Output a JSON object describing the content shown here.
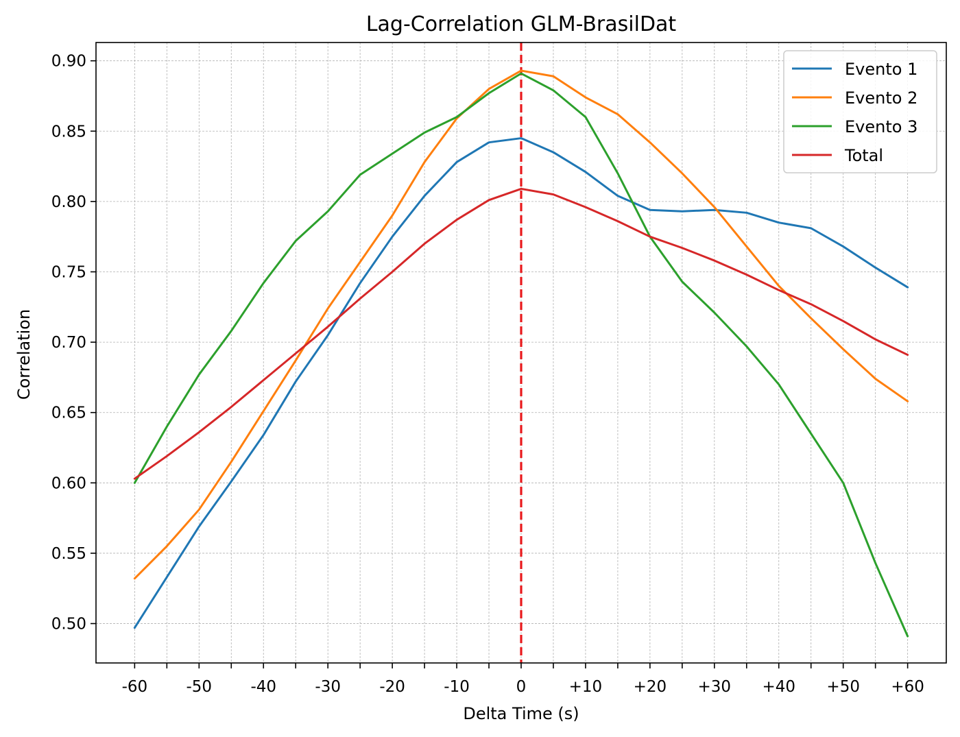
{
  "chart_data": {
    "type": "line",
    "title": "Lag-Correlation GLM-BrasilDat",
    "xlabel": "Delta Time (s)",
    "ylabel": "Correlation",
    "x": [
      -60,
      -55,
      -50,
      -45,
      -40,
      -35,
      -30,
      -25,
      -20,
      -15,
      -10,
      -5,
      0,
      5,
      10,
      15,
      20,
      25,
      30,
      35,
      40,
      45,
      50,
      55,
      60
    ],
    "x_tick_labels": [
      "-60",
      "-50",
      "-40",
      "-30",
      "-20",
      "-10",
      "0",
      "+10",
      "+20",
      "+30",
      "+40",
      "+50",
      "+60"
    ],
    "x_tick_values": [
      -60,
      -50,
      -40,
      -30,
      -20,
      -10,
      0,
      10,
      20,
      30,
      40,
      50,
      60
    ],
    "y_tick_labels": [
      "0.50",
      "0.55",
      "0.60",
      "0.65",
      "0.70",
      "0.75",
      "0.80",
      "0.85",
      "0.90"
    ],
    "y_tick_values": [
      0.5,
      0.55,
      0.6,
      0.65,
      0.7,
      0.75,
      0.8,
      0.85,
      0.9
    ],
    "xlim": [
      -66,
      66
    ],
    "ylim": [
      0.472,
      0.913
    ],
    "grid": true,
    "legend_position": "top-right",
    "vline": {
      "x": 0,
      "color": "#e8191c",
      "style": "dashed"
    },
    "series": [
      {
        "name": "Evento 1",
        "color": "#1f77b4",
        "values": [
          0.497,
          0.533,
          0.569,
          0.601,
          0.634,
          0.672,
          0.705,
          0.742,
          0.775,
          0.804,
          0.828,
          0.842,
          0.845,
          0.835,
          0.821,
          0.804,
          0.794,
          0.793,
          0.794,
          0.792,
          0.785,
          0.781,
          0.768,
          0.753,
          0.739
        ]
      },
      {
        "name": "Evento 2",
        "color": "#ff7f0e",
        "values": [
          0.532,
          0.555,
          0.581,
          0.615,
          0.651,
          0.687,
          0.724,
          0.757,
          0.79,
          0.828,
          0.859,
          0.88,
          0.893,
          0.889,
          0.874,
          0.862,
          0.842,
          0.82,
          0.796,
          0.768,
          0.74,
          0.717,
          0.695,
          0.674,
          0.658
        ]
      },
      {
        "name": "Evento 3",
        "color": "#2ca02c",
        "values": [
          0.6,
          0.64,
          0.677,
          0.708,
          0.742,
          0.772,
          0.793,
          0.819,
          0.834,
          0.849,
          0.86,
          0.877,
          0.891,
          0.879,
          0.86,
          0.82,
          0.775,
          0.743,
          0.721,
          0.697,
          0.67,
          0.635,
          0.6,
          0.543,
          0.491
        ]
      },
      {
        "name": "Total",
        "color": "#d62728",
        "values": [
          0.603,
          0.619,
          0.636,
          0.654,
          0.673,
          0.692,
          0.711,
          0.731,
          0.75,
          0.77,
          0.787,
          0.801,
          0.809,
          0.805,
          0.796,
          0.786,
          0.775,
          0.767,
          0.758,
          0.748,
          0.737,
          0.727,
          0.715,
          0.702,
          0.691
        ]
      }
    ]
  }
}
